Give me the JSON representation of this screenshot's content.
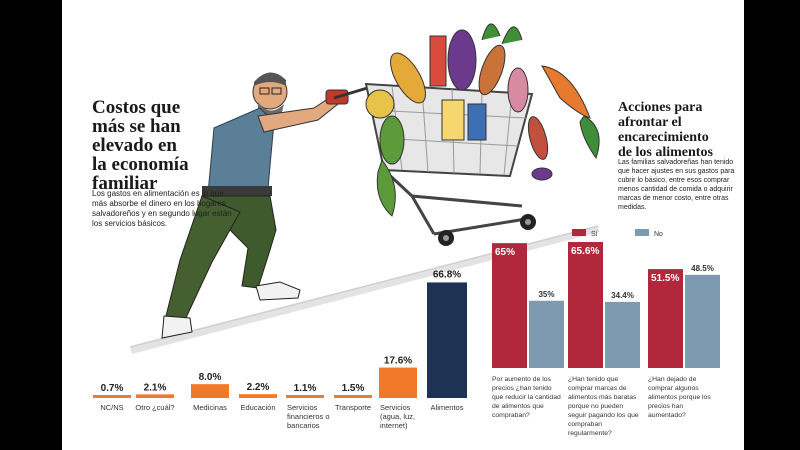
{
  "left": {
    "title": [
      "Costos que",
      "más se han",
      "elevado en",
      "la economía",
      "familiar"
    ],
    "text": "Los gastos en alimentación es lo que más absorbe el dinero en los hogares salvadoreños y en segundo lugar están los servicios básicos."
  },
  "right": {
    "title": [
      "Acciones para",
      "afrontar el",
      "encarecimiento",
      "de los alimentos"
    ],
    "text": "Las familias salvadoreñas han tenido que hacer ajustes en sus gastos para cubrir lo básico, entre esos comprar menos cantidad de comida o adquirir marcas de menor costo, entre otras medidas."
  },
  "colors": {
    "orange": "#f07a2a",
    "navy": "#1e3354",
    "red": "#b1283c",
    "steel": "#7d9ab0"
  },
  "chart_data": [
    {
      "type": "bar",
      "categories": [
        [
          "NC/NS"
        ],
        [
          "Otro ¿cuál?"
        ],
        [
          "Medicinas"
        ],
        [
          "Educación"
        ],
        [
          "Servicios",
          "financieros o",
          "bancarios"
        ],
        [
          "Transporte"
        ],
        [
          "Servicios",
          "(agua, luz,",
          "internet)"
        ],
        [
          "Alimentos"
        ]
      ],
      "values": [
        0.7,
        2.1,
        8.0,
        2.2,
        1.1,
        1.5,
        17.6,
        66.8
      ],
      "value_labels": [
        "0.7%",
        "2.1%",
        "8.0%",
        "2.2%",
        "1.1%",
        "1.5%",
        "17.6%",
        "66.8%"
      ]
    },
    {
      "type": "bar",
      "legend": [
        "Sí",
        "No"
      ],
      "categories": [
        [
          "Por aumento de los",
          "precios ¿han tenido",
          "que reducir la cantidad",
          "de alimentos que",
          "compraban?"
        ],
        [
          "¿Han tenido que",
          "comprar marcas de",
          "alimentos más baratas",
          "porque no pueden",
          "seguir pagando los que",
          "compraban",
          "regularmente?"
        ],
        [
          "¿Han dejado de",
          "comprar algunos",
          "alimentos porque los",
          "precios han",
          "aumentado?"
        ]
      ],
      "series": [
        {
          "name": "Sí",
          "values": [
            65,
            65.6,
            51.5
          ],
          "labels": [
            "65%",
            "65.6%",
            "51.5%"
          ]
        },
        {
          "name": "No",
          "values": [
            35,
            34.4,
            48.5
          ],
          "labels": [
            "35%",
            "34.4%",
            "48.5%"
          ]
        }
      ]
    }
  ]
}
